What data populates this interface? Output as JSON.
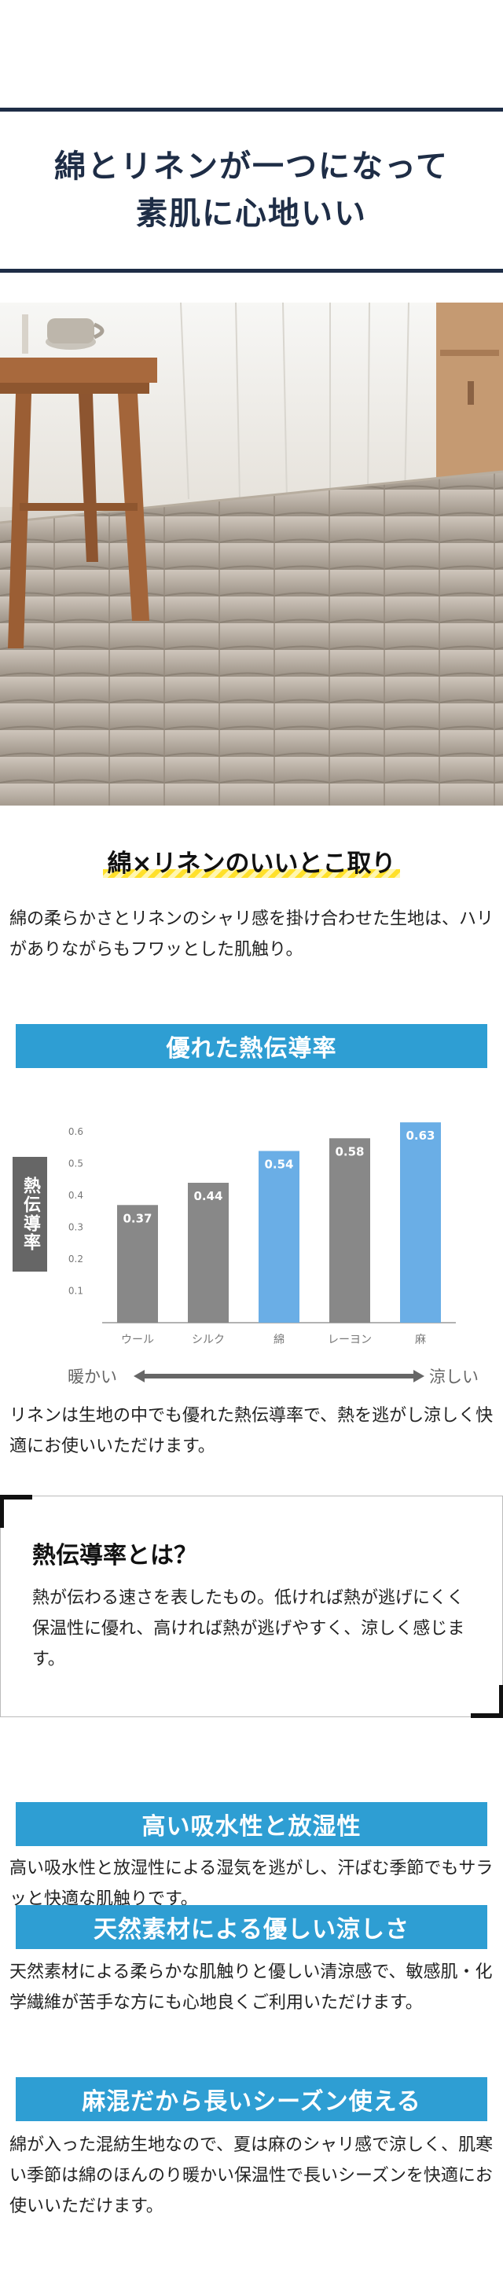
{
  "headline": {
    "line1": "綿とリネンが一つになって",
    "line2": "素肌に心地いい"
  },
  "section1": {
    "title": "綿×リネンのいいとこ取り",
    "text": "綿の柔らかさとリネンのシャリ感を掛け合わせた生地は、ハリがありながらもフワッとした肌触り。"
  },
  "section2": {
    "title": "優れた熱伝導率",
    "chart_tag": "熱伝導率",
    "warm_label": "暖かい",
    "cool_label": "涼しい",
    "text": "リネンは生地の中でも優れた熱伝導率で、熱を逃がし涼しく快適にお使いいただけます。"
  },
  "chart_data": {
    "type": "bar",
    "categories": [
      "ウール",
      "シルク",
      "綿",
      "レーヨン",
      "麻"
    ],
    "values": [
      0.37,
      0.44,
      0.54,
      0.58,
      0.63
    ],
    "value_labels": [
      "0.37",
      "0.44",
      "0.54",
      "0.58",
      "0.63"
    ],
    "highlighted": [
      false,
      false,
      true,
      false,
      true
    ],
    "ylim": [
      0,
      0.65
    ],
    "yticks": [
      0.1,
      0.2,
      0.3,
      0.4,
      0.5,
      0.6
    ],
    "ytick_labels": [
      "0.1",
      "0.2",
      "0.3",
      "0.4",
      "0.5",
      "0.6"
    ],
    "ylabel": "熱伝導率",
    "grid": false,
    "colors": {
      "default": "#888888",
      "highlight": "#6aaee6",
      "label": "#ffffff",
      "axis": "#999999"
    }
  },
  "info_box": {
    "title": "熱伝導率とは？",
    "text": "熱が伝わる速さを表したもの。低ければ熱が逃げにくく保温性に優れ、高ければ熱が逃げやすく、涼しく感じます。"
  },
  "features": [
    {
      "title": "高い吸水性と放湿性",
      "text": "高い吸水性と放湿性による湿気を逃がし、汗ばむ季節でもサラッと快適な肌触りです。"
    },
    {
      "title": "天然素材による優しい涼しさ",
      "text": "天然素材による柔らかな肌触りと優しい清涼感で、敏感肌・化学繊維が苦手な方にも心地良くご利用いただけます。"
    },
    {
      "title": "麻混だから長いシーズン使える",
      "text": "綿が入った混紡生地なので、夏は麻のシャリ感で涼しく、肌寒い季節は綿のほんのり暖かい保温性で長いシーズンを快適にお使いいただけます。"
    }
  ],
  "colors": {
    "navy": "#1e2d46",
    "blue": "#2e9ed3",
    "yellow": "#ffe02a"
  },
  "icons": [
    "double-headed-arrow-icon",
    "corner-bracket-icon"
  ]
}
